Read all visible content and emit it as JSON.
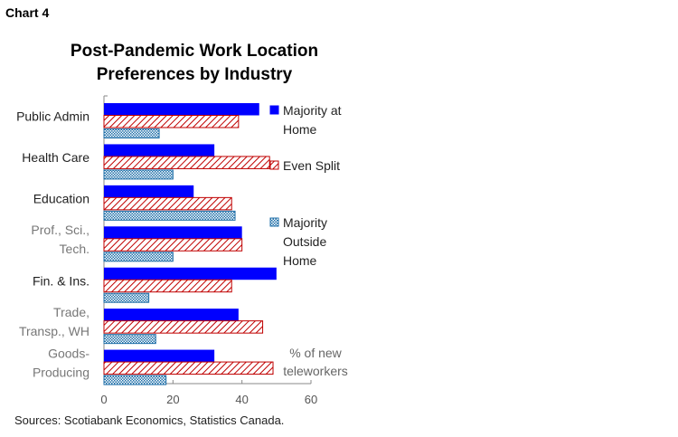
{
  "header": {
    "chart_label": "Chart 4",
    "title_lines": [
      "Post-Pandemic Work Location",
      "Preferences by Industry"
    ]
  },
  "chart_data": {
    "type": "bar",
    "orientation": "horizontal",
    "title": "Post-Pandemic Work Location Preferences by Industry",
    "categories": [
      [
        "Public Admin"
      ],
      [
        "Health Care"
      ],
      [
        "Education"
      ],
      [
        "Prof., Sci.,",
        "Tech."
      ],
      [
        "Fin. & Ins."
      ],
      [
        "Trade,",
        "Transp., WH"
      ],
      [
        "Goods-",
        "Producing"
      ]
    ],
    "grey_categories": [
      3,
      5,
      6
    ],
    "series": [
      {
        "name": "Majority at Home",
        "legend_lines": [
          "Majority at",
          "Home"
        ],
        "color": "#0000ff",
        "pattern": "solid",
        "values": [
          45,
          32,
          26,
          40,
          50,
          39,
          32
        ]
      },
      {
        "name": "Even Split",
        "legend_lines": [
          "Even Split"
        ],
        "color": "#c00000",
        "pattern": "diagonal-hatch",
        "values": [
          39,
          48,
          37,
          40,
          37,
          46,
          49
        ]
      },
      {
        "name": "Majority Outside Home",
        "legend_lines": [
          "Majority",
          "Outside",
          "Home"
        ],
        "color": "#1f6fa8",
        "pattern": "dotted",
        "values": [
          16,
          20,
          38,
          20,
          13,
          15,
          18
        ]
      }
    ],
    "units_label_lines": [
      "% of new",
      "teleworkers"
    ],
    "xlim": [
      0,
      60
    ],
    "xticks": [
      "0",
      "20",
      "40",
      "60"
    ],
    "grid": false
  },
  "footer": {
    "source": "Sources: Scotiabank Economics, Statistics Canada."
  }
}
